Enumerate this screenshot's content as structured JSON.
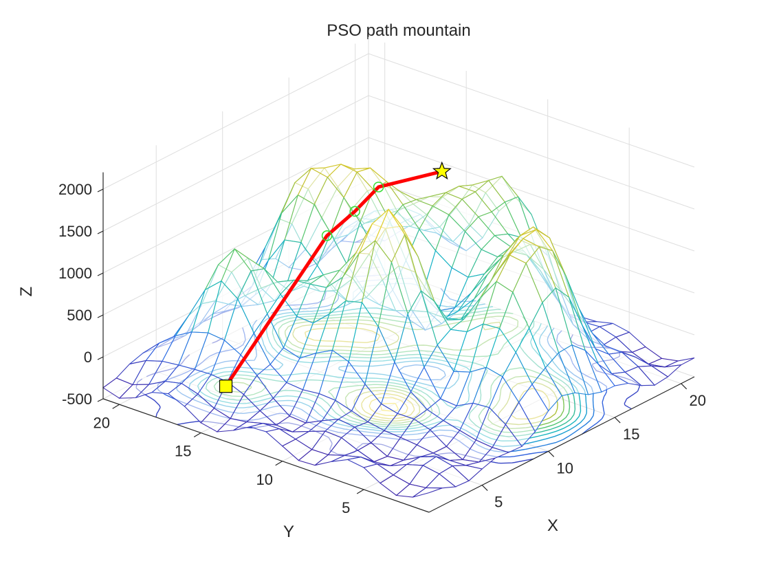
{
  "chart_data": {
    "type": "surface",
    "title": "PSO path mountain",
    "xlabel": "X",
    "ylabel": "Y",
    "zlabel": "Z",
    "xlim": [
      1,
      21
    ],
    "ylim": [
      1,
      21
    ],
    "zlim": [
      -500,
      2200
    ],
    "x_ticks": [
      "5",
      "10",
      "15",
      "20"
    ],
    "y_ticks": [
      "5",
      "10",
      "15",
      "20"
    ],
    "z_ticks": [
      "-500",
      "0",
      "500",
      "1000",
      "1500",
      "2000"
    ],
    "grid": true,
    "view": {
      "azimuth": -37.5,
      "elevation": 30
    },
    "surface_style": "mesh-with-contour",
    "colormap": [
      "#3e26a8",
      "#2f6ae6",
      "#12b3c9",
      "#55c66e",
      "#c6c02c",
      "#f3d82b",
      "#f9fb0e"
    ],
    "peaks": [
      {
        "x": 6,
        "y": 17,
        "height": 1300
      },
      {
        "x": 9,
        "y": 14,
        "height": 700
      },
      {
        "x": 13,
        "y": 18,
        "height": 1650
      },
      {
        "x": 19,
        "y": 18,
        "height": 800
      },
      {
        "x": 15,
        "y": 15,
        "height": 1300
      },
      {
        "x": 17,
        "y": 12,
        "height": 900
      },
      {
        "x": 9,
        "y": 10,
        "height": 2100
      },
      {
        "x": 16,
        "y": 8,
        "height": 1000
      },
      {
        "x": 14,
        "y": 5,
        "height": 1500
      },
      {
        "x": 20,
        "y": 12,
        "height": 1200
      },
      {
        "x": 11,
        "y": 4,
        "height": 1100
      }
    ],
    "path": {
      "color": "#ff0000",
      "points": [
        {
          "x": 4.6,
          "y": 16.4,
          "z": -330
        },
        {
          "x": 7.8,
          "y": 12.8,
          "z": 1450
        },
        {
          "x": 8.8,
          "y": 11.9,
          "z": 1720
        },
        {
          "x": 9.6,
          "y": 11.1,
          "z": 2000
        },
        {
          "x": 11.8,
          "y": 9.0,
          "z": 2150
        }
      ],
      "waypoints": [
        {
          "x": 7.8,
          "y": 12.8,
          "z": 1450
        },
        {
          "x": 8.8,
          "y": 11.9,
          "z": 1720
        },
        {
          "x": 9.6,
          "y": 11.1,
          "z": 2000
        }
      ],
      "start": {
        "x": 4.6,
        "y": 16.4,
        "z": -330,
        "marker": "square",
        "color": "#ffff00"
      },
      "end": {
        "x": 11.8,
        "y": 9.0,
        "z": 2150,
        "marker": "star",
        "color": "#ffff00"
      }
    }
  }
}
